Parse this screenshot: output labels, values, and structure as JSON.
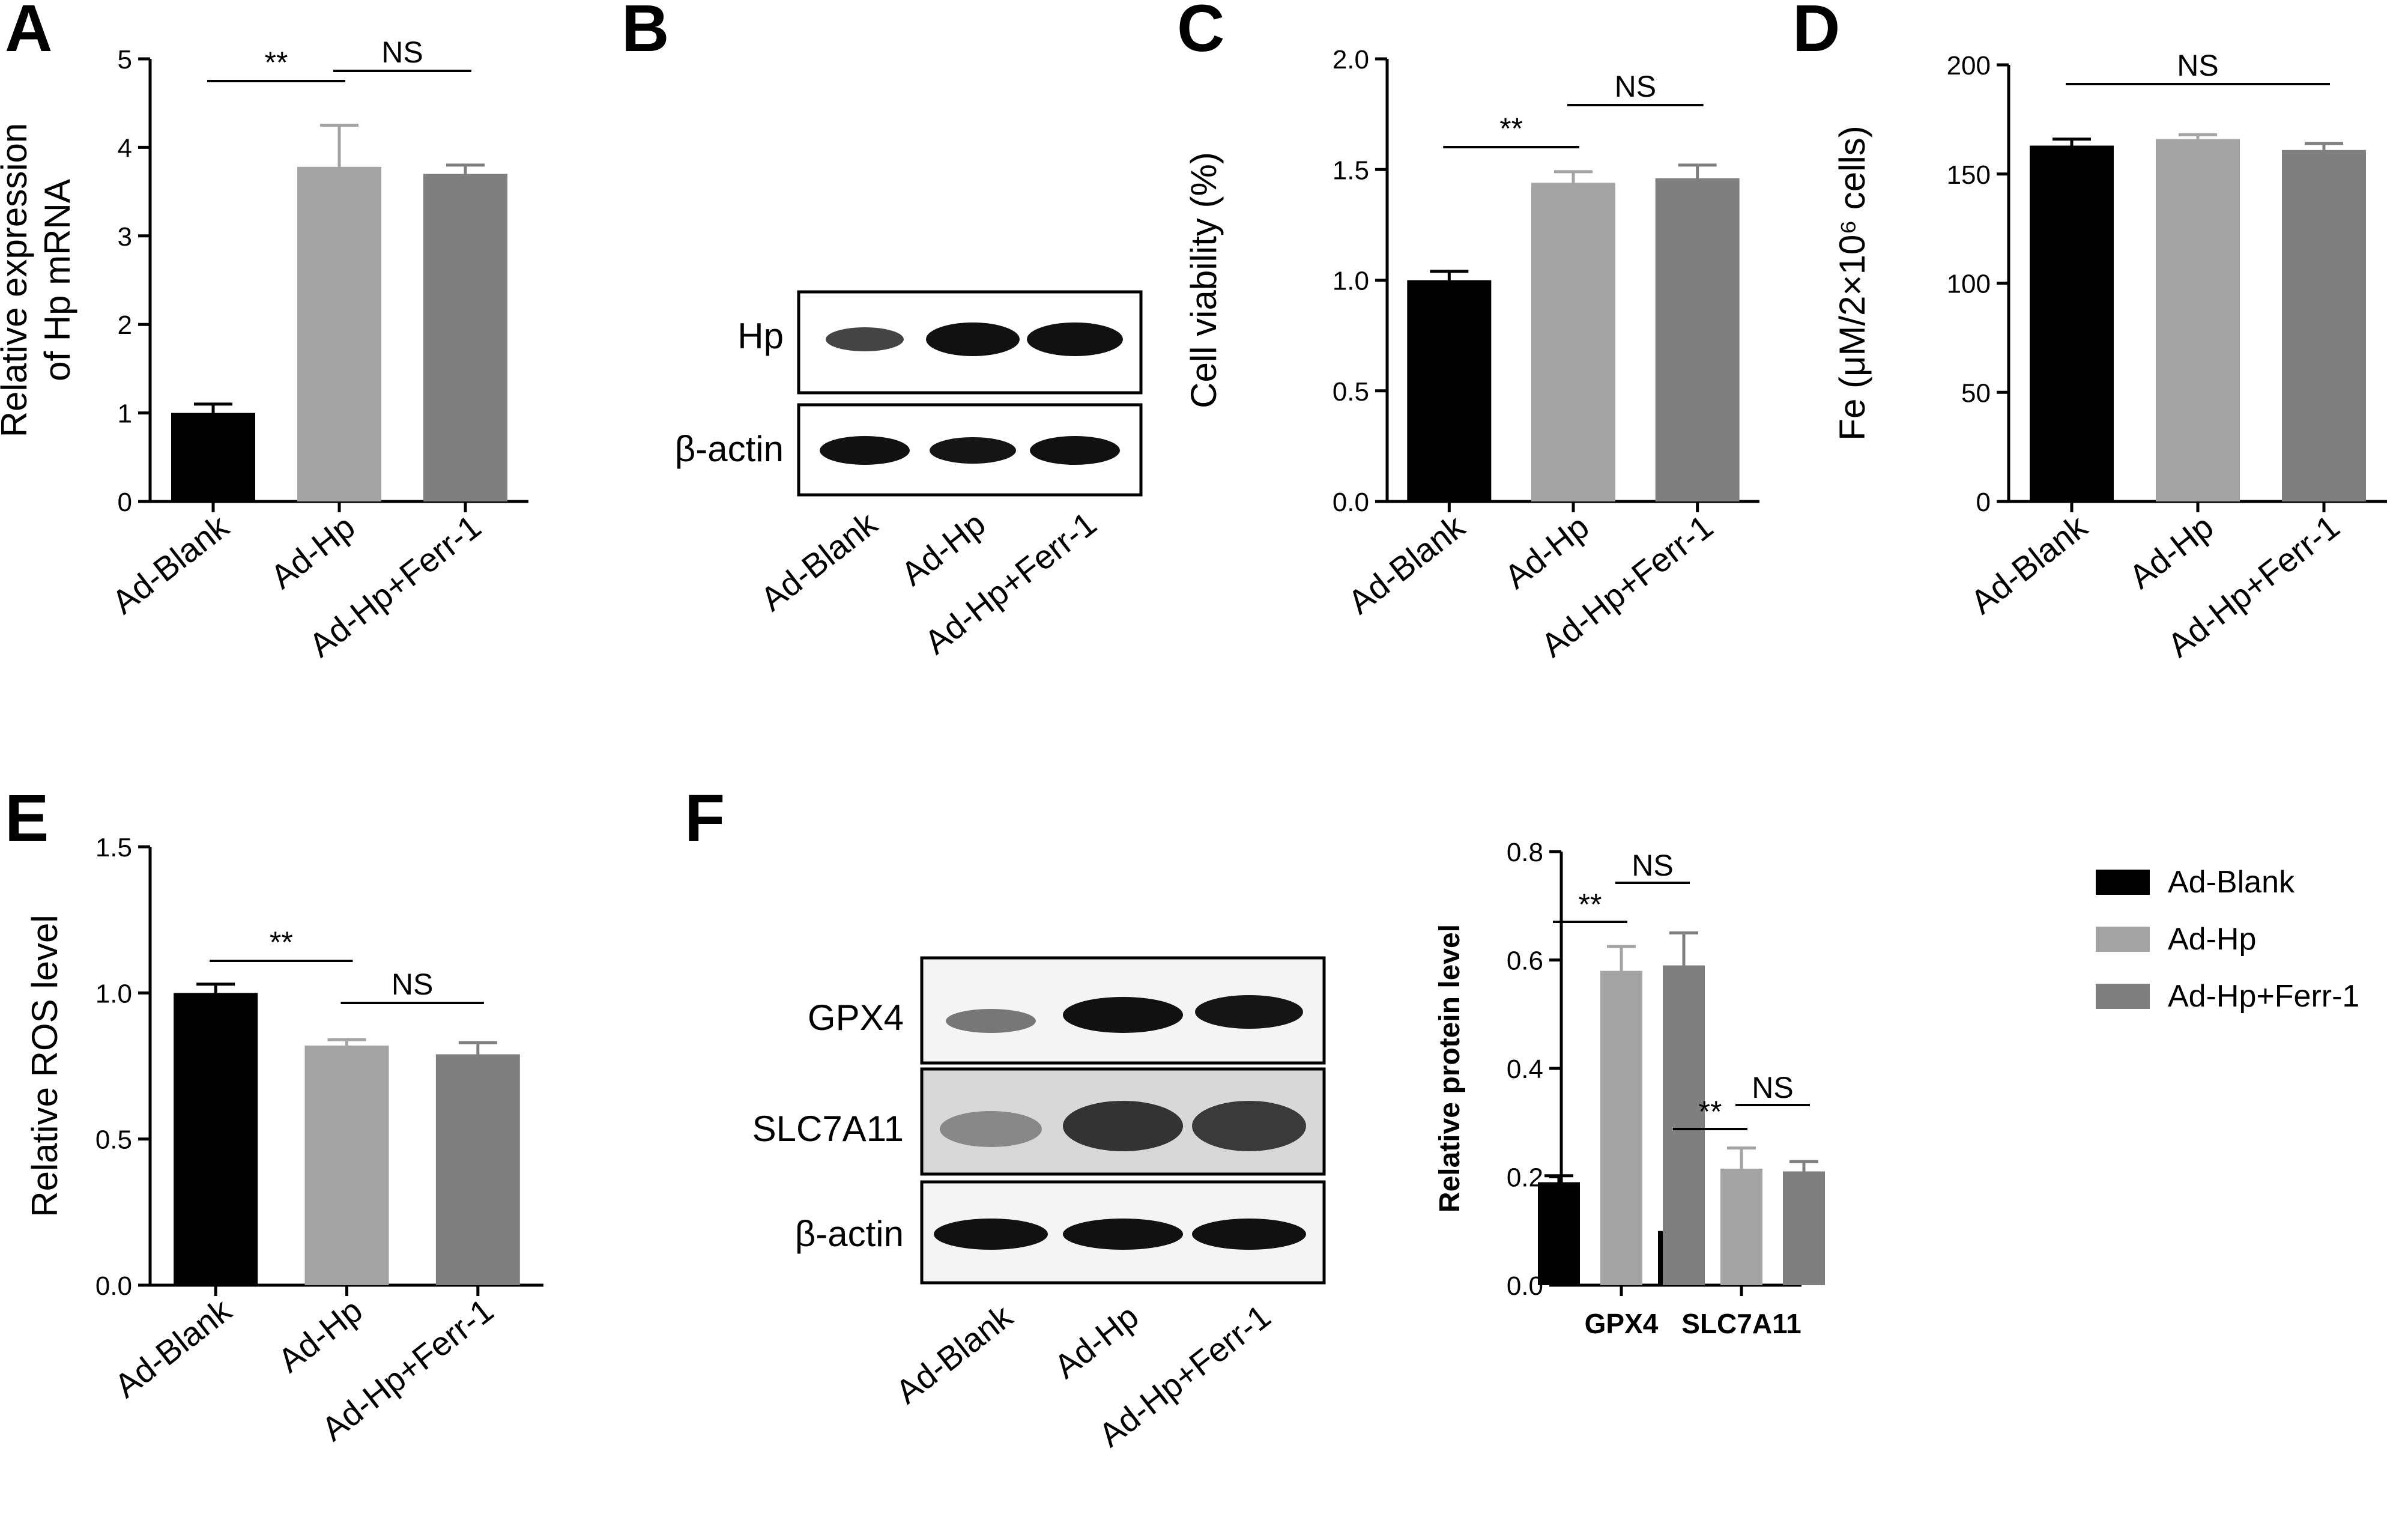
{
  "panels": {
    "A": "A",
    "B": "B",
    "C": "C",
    "D": "D",
    "E": "E",
    "F": "F"
  },
  "colors": {
    "Ad-Blank": "#000000",
    "Ad-Hp": "#a3a3a3",
    "Ad-Hp+Ferr-1": "#7f7f7f"
  },
  "blot_b": {
    "rows": [
      "Hp",
      "β-actin"
    ],
    "lanes": [
      "Ad-Blank",
      "Ad-Hp",
      "Ad-Hp+Ferr-1"
    ]
  },
  "blot_f": {
    "rows": [
      "GPX4",
      "SLC7A11",
      "β-actin"
    ],
    "lanes": [
      "Ad-Blank",
      "Ad-Hp",
      "Ad-Hp+Ferr-1"
    ]
  },
  "chart_data": [
    {
      "panel": "A",
      "type": "bar",
      "categories": [
        "Ad-Blank",
        "Ad-Hp",
        "Ad-Hp+Ferr-1"
      ],
      "values": [
        1.0,
        3.78,
        3.7
      ],
      "errors": [
        0.1,
        0.47,
        0.1
      ],
      "ylabel_lines": [
        "Relative expression",
        "of Hp mRNA"
      ],
      "ylim": [
        0,
        5
      ],
      "yticks": [
        0,
        1,
        2,
        3,
        4,
        5
      ],
      "significance": [
        {
          "from": 0,
          "to": 1,
          "label": "**"
        },
        {
          "from": 1,
          "to": 2,
          "label": "NS"
        }
      ]
    },
    {
      "panel": "C",
      "type": "bar",
      "categories": [
        "Ad-Blank",
        "Ad-Hp",
        "Ad-Hp+Ferr-1"
      ],
      "values": [
        1.0,
        1.44,
        1.46
      ],
      "errors": [
        0.04,
        0.05,
        0.06
      ],
      "ylabel_lines": [
        "Cell viability (%)"
      ],
      "ylim": [
        0,
        2
      ],
      "yticks": [
        "0.0",
        "0.5",
        "1.0",
        "1.5",
        "2.0"
      ],
      "significance": [
        {
          "from": 0,
          "to": 1,
          "label": "**"
        },
        {
          "from": 1,
          "to": 2,
          "label": "NS"
        }
      ]
    },
    {
      "panel": "D",
      "type": "bar",
      "categories": [
        "Ad-Blank",
        "Ad-Hp",
        "Ad-Hp+Ferr-1"
      ],
      "values": [
        163,
        166,
        161
      ],
      "errors": [
        3,
        2,
        3
      ],
      "ylabel_lines": [
        "Fe (μM/2×10⁶ cells)"
      ],
      "ylim": [
        0,
        200
      ],
      "yticks": [
        0,
        50,
        100,
        150,
        200
      ],
      "significance": [
        {
          "from": 0,
          "to": 2,
          "label": "NS"
        }
      ]
    },
    {
      "panel": "E",
      "type": "bar",
      "categories": [
        "Ad-Blank",
        "Ad-Hp",
        "Ad-Hp+Ferr-1"
      ],
      "values": [
        1.0,
        0.82,
        0.79
      ],
      "errors": [
        0.03,
        0.02,
        0.04
      ],
      "ylabel_lines": [
        "Relative ROS level"
      ],
      "ylim": [
        0,
        1.5
      ],
      "yticks": [
        "0.0",
        "0.5",
        "1.0",
        "1.5"
      ],
      "significance": [
        {
          "from": 0,
          "to": 1,
          "label": "**"
        },
        {
          "from": 1,
          "to": 2,
          "label": "NS"
        }
      ]
    },
    {
      "panel": "F",
      "type": "bar",
      "categories": [
        "GPX4",
        "SLC7A11"
      ],
      "series": [
        {
          "name": "Ad-Blank",
          "values": [
            0.19,
            0.1
          ],
          "errors": [
            0.012,
            0.015
          ]
        },
        {
          "name": "Ad-Hp",
          "values": [
            0.58,
            0.215
          ],
          "errors": [
            0.045,
            0.038
          ]
        },
        {
          "name": "Ad-Hp+Ferr-1",
          "values": [
            0.59,
            0.21
          ],
          "errors": [
            0.06,
            0.018
          ]
        }
      ],
      "ylabel_lines": [
        "Relative protein level"
      ],
      "ylim": [
        0,
        0.8
      ],
      "yticks": [
        "0.0",
        "0.2",
        "0.4",
        "0.6",
        "0.8"
      ],
      "legend": "right",
      "significance": [
        {
          "group": 0,
          "from": 0,
          "to": 1,
          "label": "**"
        },
        {
          "group": 0,
          "from": 1,
          "to": 2,
          "label": "NS"
        },
        {
          "group": 1,
          "from": 0,
          "to": 1,
          "label": "**"
        },
        {
          "group": 1,
          "from": 1,
          "to": 2,
          "label": "NS"
        }
      ]
    }
  ]
}
